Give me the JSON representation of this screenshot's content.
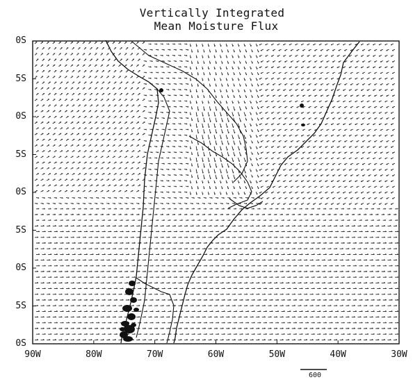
{
  "title": {
    "line1": "Vertically Integrated",
    "line2": "Mean Moisture Flux"
  },
  "axes": {
    "y_labels": [
      "0S",
      "5S",
      "0S",
      "5S",
      "0S",
      "5S",
      "0S",
      "5S",
      "0S"
    ],
    "x_labels": [
      "90W",
      "80W",
      "70W",
      "60W",
      "50W",
      "40W",
      "30W"
    ],
    "lon_range": [
      -90,
      -30
    ],
    "lat_range_degrees": [
      -60,
      -20
    ]
  },
  "reference_vector": {
    "label": "600"
  },
  "colors": {
    "ink": "#111111",
    "background": "#ffffff"
  }
}
